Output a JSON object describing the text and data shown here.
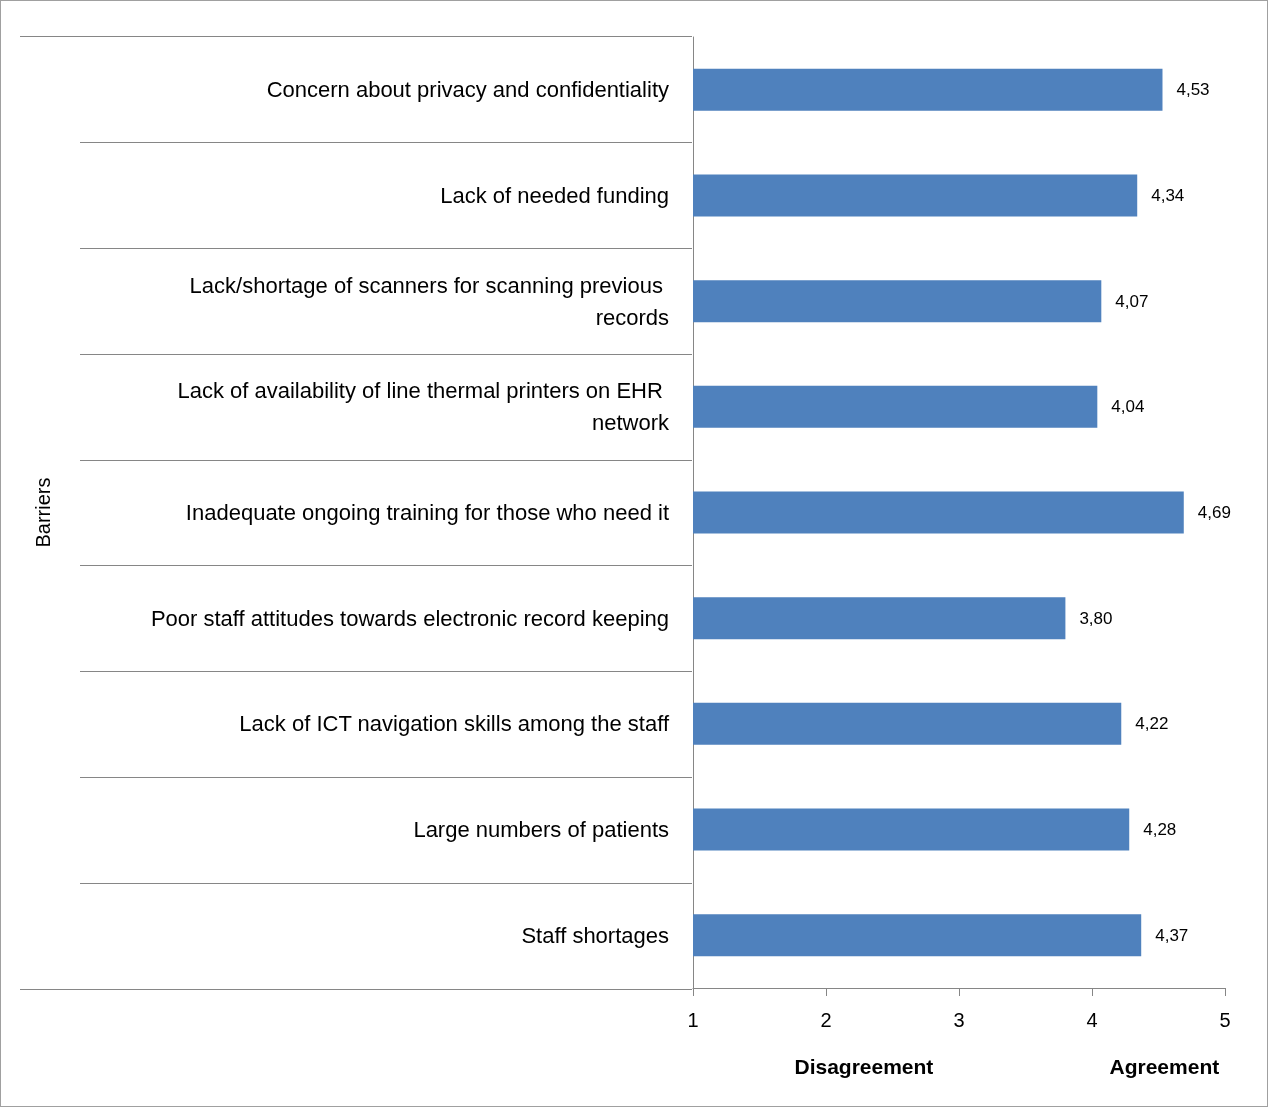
{
  "chart_data": {
    "type": "bar",
    "orientation": "horizontal",
    "ylabel": "Barriers",
    "categories": [
      "Concern about privacy and confidentiality",
      "Lack of needed funding",
      "Lack/shortage of scanners for scanning previous records",
      "Lack of availability of line thermal printers on EHR network",
      "Inadequate ongoing training for those who need it",
      "Poor staff attitudes towards electronic record keeping",
      "Lack of ICT navigation skills among the staff",
      "Large numbers of patients",
      "Staff shortages"
    ],
    "values": [
      4.53,
      4.34,
      4.07,
      4.04,
      4.69,
      3.8,
      4.22,
      4.28,
      4.37
    ],
    "value_labels": [
      "4,53",
      "4,34",
      "4,07",
      "4,04",
      "4,69",
      "3,80",
      "4,22",
      "4,28",
      "4,37"
    ],
    "color": "#4f81bd",
    "xlim": [
      1,
      5
    ],
    "xticks": [
      1,
      2,
      3,
      4,
      5
    ],
    "grid": false,
    "annotations": [
      "Disagreement",
      "Agreement"
    ]
  }
}
